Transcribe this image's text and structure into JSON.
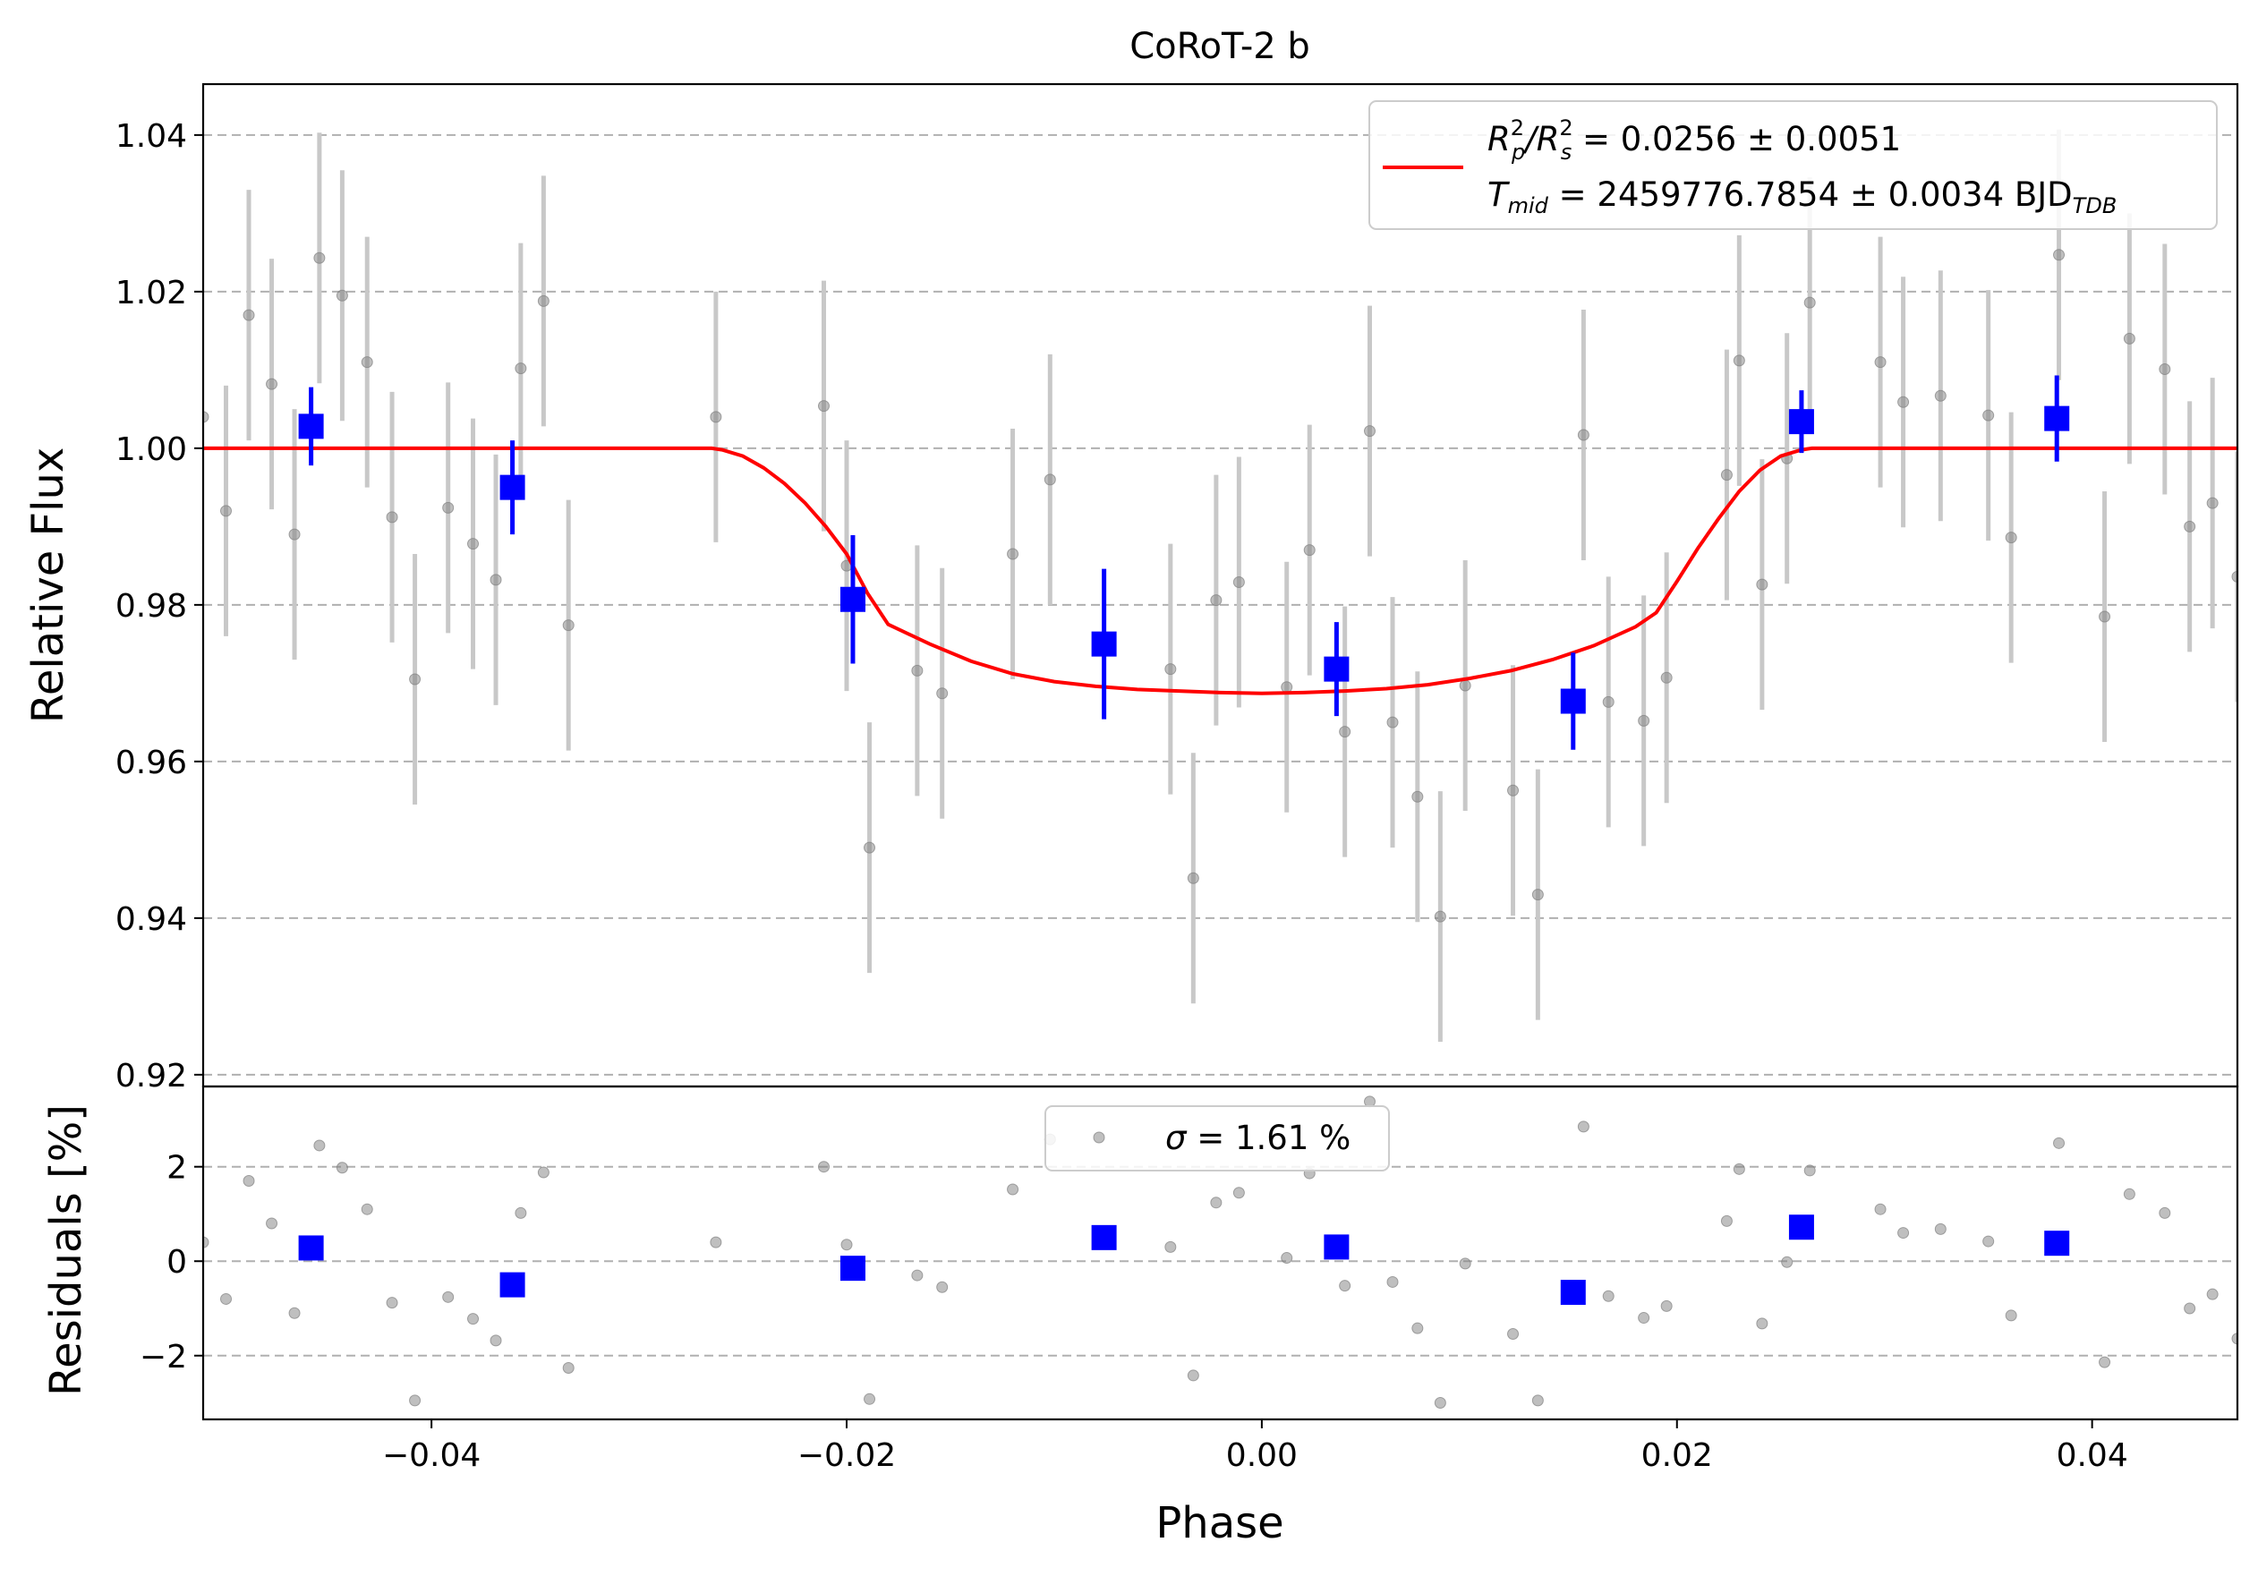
{
  "chart_data": [
    {
      "type": "scatter",
      "title": "CoRoT-2 b",
      "xlabel": "",
      "ylabel": "Relative Flux",
      "xlim": [
        -0.051,
        0.047
      ],
      "ylim": [
        0.9185,
        1.0465
      ],
      "yticks": [
        0.92,
        0.94,
        0.96,
        0.98,
        1.0,
        1.02,
        1.04
      ],
      "ytick_labels": [
        "0.92",
        "0.94",
        "0.96",
        "0.98",
        "1.00",
        "1.02",
        "1.04"
      ],
      "grid": "horizontal dashed",
      "legend": {
        "placement": "top-right",
        "line1": {
          "prefix": "R",
          "sup1": "2",
          "sub1": "p",
          "slash": "/R",
          "sup2": "2",
          "sub2": "s",
          "value": " = 0.0256 ± 0.0051"
        },
        "line2": {
          "prefix": "T",
          "sub": "mid",
          "value": " = 2459776.7854 ± 0.0034 BJD",
          "sub_end": "TDB"
        }
      },
      "model": {
        "color": "#ff0000",
        "x": [
          -0.051,
          -0.0265,
          -0.026,
          -0.025,
          -0.024,
          -0.023,
          -0.022,
          -0.021,
          -0.02,
          -0.019,
          -0.018,
          -0.016,
          -0.014,
          -0.012,
          -0.01,
          -0.008,
          -0.006,
          -0.004,
          -0.002,
          0.0,
          0.002,
          0.004,
          0.006,
          0.008,
          0.01,
          0.012,
          0.014,
          0.016,
          0.018,
          0.019,
          0.02,
          0.021,
          0.022,
          0.023,
          0.024,
          0.025,
          0.026,
          0.0265,
          0.047
        ],
        "y": [
          1.0,
          1.0,
          0.9998,
          0.999,
          0.9975,
          0.9955,
          0.993,
          0.99,
          0.9865,
          0.9815,
          0.9775,
          0.975,
          0.9728,
          0.9712,
          0.9702,
          0.9696,
          0.9692,
          0.969,
          0.9688,
          0.9687,
          0.9688,
          0.969,
          0.9693,
          0.9698,
          0.9706,
          0.9716,
          0.973,
          0.9748,
          0.9772,
          0.979,
          0.983,
          0.9872,
          0.991,
          0.9945,
          0.9972,
          0.999,
          0.9998,
          1.0,
          1.0
        ]
      },
      "raw_points": {
        "color": "#808080",
        "x": [
          -0.051,
          -0.0499,
          -0.0488,
          -0.0477,
          -0.0466,
          -0.0454,
          -0.0443,
          -0.0431,
          -0.0419,
          -0.0408,
          -0.0392,
          -0.038,
          -0.0369,
          -0.0357,
          -0.0346,
          -0.0334,
          -0.0263,
          -0.0211,
          -0.02,
          -0.0189,
          -0.0166,
          -0.0154,
          -0.012,
          -0.0102,
          -0.0044,
          -0.0033,
          -0.0022,
          -0.0011,
          0.0012,
          0.0023,
          0.004,
          0.0052,
          0.0063,
          0.0075,
          0.0086,
          0.0098,
          0.0121,
          0.0133,
          0.0155,
          0.0167,
          0.0184,
          0.0195,
          0.0224,
          0.023,
          0.0241,
          0.0253,
          0.0264,
          0.0298,
          0.0309,
          0.0327,
          0.035,
          0.0361,
          0.0384,
          0.0406,
          0.0418,
          0.0435,
          0.0447,
          0.0458,
          0.047
        ],
        "y": [
          1.004,
          0.992,
          1.017,
          1.0082,
          0.989,
          1.0243,
          1.0195,
          1.011,
          0.9912,
          0.9705,
          0.9924,
          0.9878,
          0.9832,
          1.0102,
          1.0188,
          0.9774,
          1.004,
          1.0054,
          0.985,
          0.949,
          0.9716,
          0.9687,
          0.9865,
          0.996,
          0.9718,
          0.9451,
          0.9806,
          0.9829,
          0.9695,
          0.987,
          0.9638,
          1.0022,
          0.965,
          0.9555,
          0.9402,
          0.9697,
          0.9563,
          0.943,
          1.0017,
          0.9676,
          0.9652,
          0.9707,
          0.9966,
          1.0112,
          0.9826,
          0.9987,
          1.0186,
          1.011,
          1.0059,
          1.0067,
          1.0042,
          0.9886,
          1.0247,
          0.9785,
          1.014,
          1.0101,
          0.99,
          0.993,
          0.9836
        ],
        "yerr": [
          0.0,
          0.016,
          0.016,
          0.016,
          0.016,
          0.016,
          0.016,
          0.016,
          0.016,
          0.016,
          0.016,
          0.016,
          0.016,
          0.016,
          0.016,
          0.016,
          0.016,
          0.016,
          0.016,
          0.016,
          0.016,
          0.016,
          0.016,
          0.016,
          0.016,
          0.016,
          0.016,
          0.016,
          0.016,
          0.016,
          0.016,
          0.016,
          0.016,
          0.016,
          0.016,
          0.016,
          0.016,
          0.016,
          0.016,
          0.016,
          0.016,
          0.016,
          0.016,
          0.016,
          0.016,
          0.016,
          0.016,
          0.016,
          0.016,
          0.016,
          0.016,
          0.016,
          0.016,
          0.016,
          0.016,
          0.016,
          0.016,
          0.016,
          0.016
        ]
      },
      "binned_points": {
        "color": "#0000ff",
        "x": [
          -0.0458,
          -0.0361,
          -0.0197,
          -0.0076,
          0.0036,
          0.015,
          0.026,
          0.0383
        ],
        "y": [
          1.0028,
          0.995,
          0.9807,
          0.975,
          0.9718,
          0.9677,
          1.0034,
          1.0038
        ],
        "yerr": [
          0.005,
          0.006,
          0.0082,
          0.0096,
          0.006,
          0.0062,
          0.004,
          0.0055
        ]
      }
    },
    {
      "type": "scatter",
      "title": "",
      "xlabel": "Phase",
      "ylabel": "Residuals [%]",
      "xlim": [
        -0.051,
        0.047
      ],
      "ylim": [
        -3.35,
        3.7
      ],
      "xticks": [
        -0.04,
        -0.02,
        0.0,
        0.02,
        0.04
      ],
      "xtick_labels": [
        "−0.04",
        "−0.02",
        "0.00",
        "0.02",
        "0.04"
      ],
      "yticks": [
        -2,
        0,
        2
      ],
      "ytick_labels": [
        "−2",
        "0",
        "2"
      ],
      "grid": "horizontal dashed",
      "legend": {
        "placement": "top-center",
        "label_sigma": "σ",
        "label_value": " = 1.61 %"
      },
      "raw_points": {
        "color": "#808080",
        "x": [
          -0.051,
          -0.0499,
          -0.0488,
          -0.0477,
          -0.0466,
          -0.0454,
          -0.0443,
          -0.0431,
          -0.0419,
          -0.0408,
          -0.0392,
          -0.038,
          -0.0369,
          -0.0357,
          -0.0346,
          -0.0334,
          -0.0263,
          -0.0211,
          -0.02,
          -0.0189,
          -0.0166,
          -0.0154,
          -0.012,
          -0.0102,
          -0.0044,
          -0.0033,
          -0.0022,
          -0.0011,
          0.0012,
          0.0023,
          0.004,
          0.0052,
          0.0063,
          0.0075,
          0.0086,
          0.0098,
          0.0121,
          0.0133,
          0.0155,
          0.0167,
          0.0184,
          0.0195,
          0.0224,
          0.023,
          0.0241,
          0.0253,
          0.0264,
          0.0298,
          0.0309,
          0.0327,
          0.035,
          0.0361,
          0.0384,
          0.0406,
          0.0418,
          0.0435,
          0.0447,
          0.0458,
          0.047
        ],
        "y": [
          0.4,
          -0.8,
          1.7,
          0.8,
          -1.1,
          2.45,
          1.98,
          1.1,
          -0.88,
          -2.95,
          -0.76,
          -1.22,
          -1.68,
          1.02,
          1.88,
          -2.26,
          0.4,
          2.0,
          0.35,
          -2.92,
          -0.3,
          -0.55,
          1.52,
          2.58,
          0.3,
          -2.42,
          1.24,
          1.45,
          0.07,
          1.86,
          -0.52,
          3.38,
          -0.44,
          -1.42,
          -3.0,
          -0.05,
          -1.54,
          -2.95,
          2.85,
          -0.74,
          -1.2,
          -0.95,
          0.85,
          1.95,
          -1.32,
          -0.02,
          1.92,
          1.1,
          0.6,
          0.68,
          0.42,
          -1.15,
          2.5,
          -2.14,
          1.42,
          1.02,
          -1.0,
          -0.7,
          -1.64
        ]
      },
      "binned_points": {
        "color": "#0000ff",
        "x": [
          -0.0458,
          -0.0361,
          -0.0197,
          -0.0076,
          0.0036,
          0.015,
          0.026,
          0.0383
        ],
        "y": [
          0.28,
          -0.5,
          -0.15,
          0.5,
          0.3,
          -0.66,
          0.72,
          0.38
        ]
      }
    }
  ]
}
